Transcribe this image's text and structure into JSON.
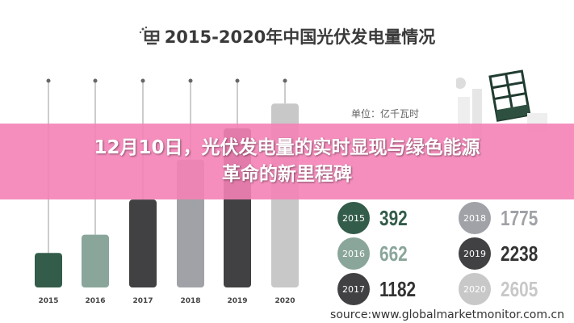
{
  "headline": {
    "line1": "12月10日，光伏发电量的实时显现与绿色能源",
    "line2": "革命的新里程碑"
  },
  "source": "source:www.globalmarketmonitor.com.cn",
  "chart_data": {
    "type": "bar",
    "title": "2015-2020年中国光伏发电量情况",
    "unit": "单位：亿千瓦时",
    "categories": [
      "2015",
      "2016",
      "2017",
      "2018",
      "2019",
      "2020"
    ],
    "values": [
      392,
      662,
      1182,
      1775,
      2238,
      2605
    ],
    "colors": [
      "#335c4a",
      "#8aa69a",
      "#414143",
      "#a0a2a7",
      "#414143",
      "#c8c8c8"
    ],
    "value_text_colors": [
      "#335c4a",
      "#8aa69a",
      "#333333",
      "#a0a2a7",
      "#333333",
      "#c8c8c8"
    ]
  }
}
